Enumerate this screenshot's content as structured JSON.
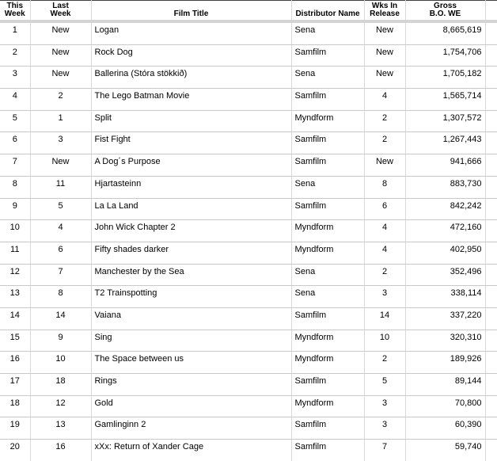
{
  "table": {
    "name": "weekly-box-office-report",
    "headers": [
      {
        "label": "This\nWeek"
      },
      {
        "label": "Last\nWeek"
      },
      {
        "label": "Film Title"
      },
      {
        "label": "Distributor Name"
      },
      {
        "label": "Wks In\nRelease"
      },
      {
        "label": "Gross\nB.O. WE"
      },
      {
        "label": ""
      }
    ],
    "rows": [
      {
        "this_week": "1",
        "last_week": "New",
        "film_title": "Logan",
        "distributor": "Sena",
        "wks_in_release": "New",
        "gross": "8,665,619"
      },
      {
        "this_week": "2",
        "last_week": "New",
        "film_title": "Rock Dog",
        "distributor": "Samfilm",
        "wks_in_release": "New",
        "gross": "1,754,706"
      },
      {
        "this_week": "3",
        "last_week": "New",
        "film_title": "Ballerina (Stóra stökkið)",
        "distributor": "Sena",
        "wks_in_release": "New",
        "gross": "1,705,182"
      },
      {
        "this_week": "4",
        "last_week": "2",
        "film_title": "The Lego Batman Movie",
        "distributor": "Samfilm",
        "wks_in_release": "4",
        "gross": "1,565,714"
      },
      {
        "this_week": "5",
        "last_week": "1",
        "film_title": "Split",
        "distributor": "Myndform",
        "wks_in_release": "2",
        "gross": "1,307,572"
      },
      {
        "this_week": "6",
        "last_week": "3",
        "film_title": "Fist Fight",
        "distributor": "Samfilm",
        "wks_in_release": "2",
        "gross": "1,267,443"
      },
      {
        "this_week": "7",
        "last_week": "New",
        "film_title": "A Dog´s Purpose",
        "distributor": "Samfilm",
        "wks_in_release": "New",
        "gross": "941,666"
      },
      {
        "this_week": "8",
        "last_week": "11",
        "film_title": "Hjartasteinn",
        "distributor": "Sena",
        "wks_in_release": "8",
        "gross": "883,730"
      },
      {
        "this_week": "9",
        "last_week": "5",
        "film_title": "La La Land",
        "distributor": "Samfilm",
        "wks_in_release": "6",
        "gross": "842,242"
      },
      {
        "this_week": "10",
        "last_week": "4",
        "film_title": "John Wick Chapter 2",
        "distributor": "Myndform",
        "wks_in_release": "4",
        "gross": "472,160"
      },
      {
        "this_week": "11",
        "last_week": "6",
        "film_title": "Fifty shades darker",
        "distributor": "Myndform",
        "wks_in_release": "4",
        "gross": "402,950"
      },
      {
        "this_week": "12",
        "last_week": "7",
        "film_title": "Manchester by the Sea",
        "distributor": "Sena",
        "wks_in_release": "2",
        "gross": "352,496"
      },
      {
        "this_week": "13",
        "last_week": "8",
        "film_title": "T2 Trainspotting",
        "distributor": "Sena",
        "wks_in_release": "3",
        "gross": "338,114"
      },
      {
        "this_week": "14",
        "last_week": "14",
        "film_title": "Vaiana",
        "distributor": "Samfilm",
        "wks_in_release": "14",
        "gross": "337,220"
      },
      {
        "this_week": "15",
        "last_week": "9",
        "film_title": "Sing",
        "distributor": "Myndform",
        "wks_in_release": "10",
        "gross": "320,310"
      },
      {
        "this_week": "16",
        "last_week": "10",
        "film_title": "The Space between us",
        "distributor": "Myndform",
        "wks_in_release": "2",
        "gross": "189,926"
      },
      {
        "this_week": "17",
        "last_week": "18",
        "film_title": "Rings",
        "distributor": "Samfilm",
        "wks_in_release": "5",
        "gross": "89,144"
      },
      {
        "this_week": "18",
        "last_week": "12",
        "film_title": "Gold",
        "distributor": "Myndform",
        "wks_in_release": "3",
        "gross": "70,800"
      },
      {
        "this_week": "19",
        "last_week": "13",
        "film_title": "Gamlinginn 2",
        "distributor": "Samfilm",
        "wks_in_release": "3",
        "gross": "60,390"
      },
      {
        "this_week": "20",
        "last_week": "16",
        "film_title": "xXx: Return of Xander Cage",
        "distributor": "Samfilm",
        "wks_in_release": "7",
        "gross": "59,740"
      }
    ]
  },
  "colors": {
    "top_rule": "#3f3f3f",
    "header_band": "#d4d4d4",
    "row_rule": "#c9c9c9",
    "column_rule": "#d9d9d9",
    "text": "#000000",
    "background": "#ffffff"
  }
}
